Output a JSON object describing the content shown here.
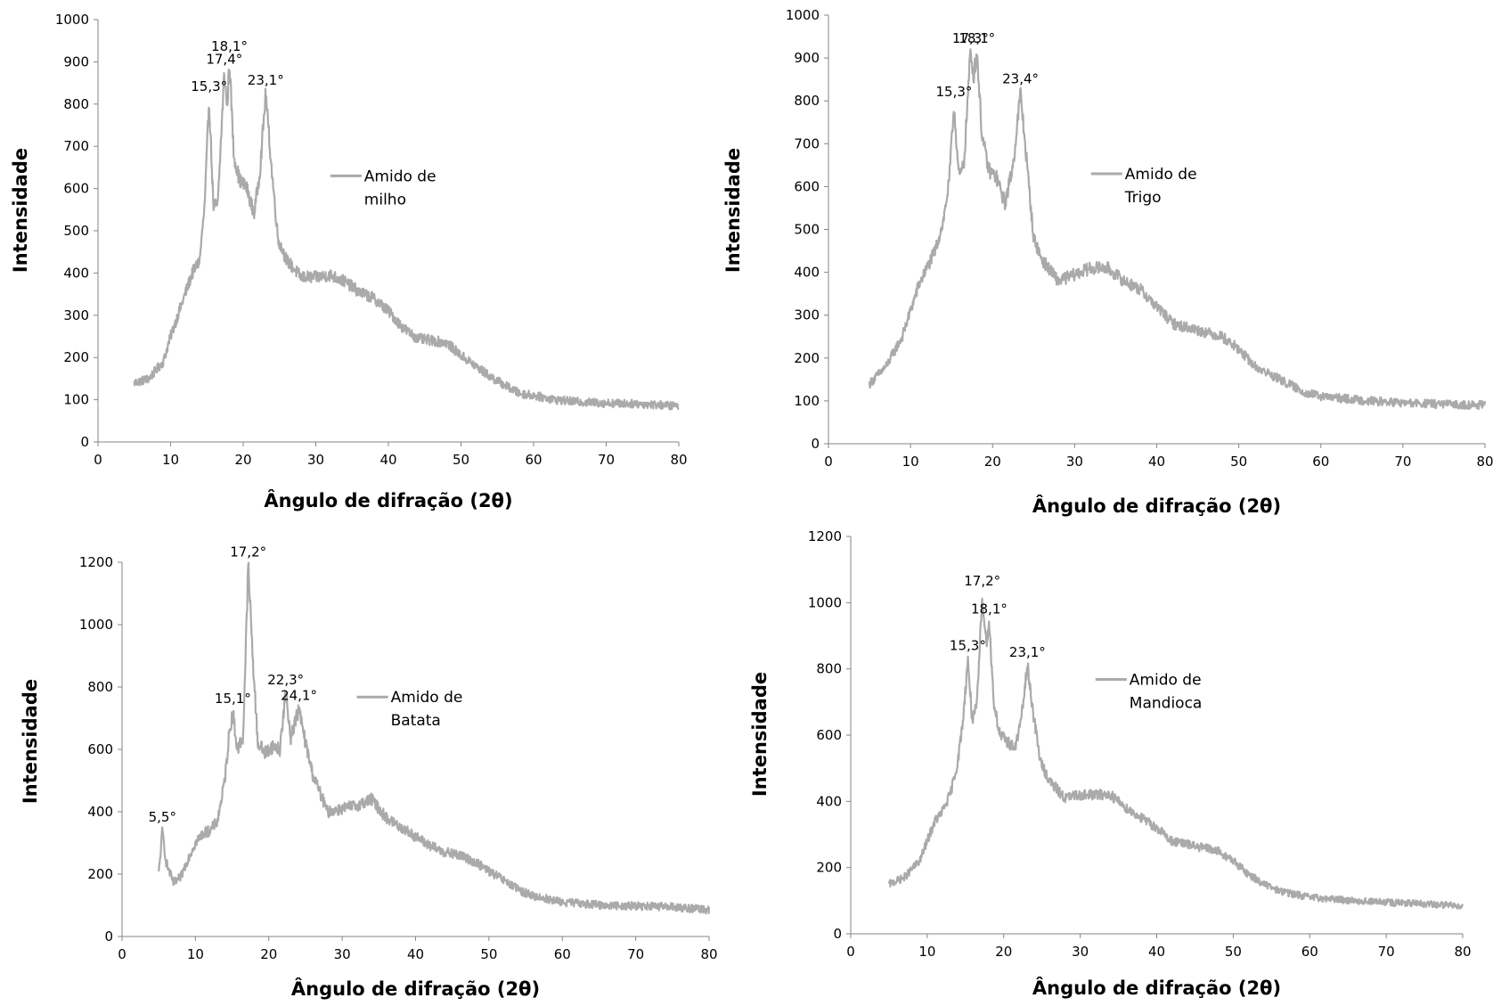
{
  "chart_data": [
    {
      "type": "line",
      "xlabel": "Ângulo de difração (2θ)",
      "ylabel": "Intensidade",
      "xlim": [
        0,
        80
      ],
      "ylim": [
        0,
        1000
      ],
      "xticks": [
        "0",
        "10",
        "20",
        "30",
        "40",
        "50",
        "60",
        "70",
        "80"
      ],
      "yticks": [
        "0",
        "100",
        "200",
        "300",
        "400",
        "500",
        "600",
        "700",
        "800",
        "900",
        "1000"
      ],
      "grid": false,
      "legend_position": "middle-right",
      "series": [
        {
          "name": "Amido de milho",
          "color": "#aaaaaa"
        }
      ],
      "peaks": [
        {
          "x": 15.3,
          "y": 810,
          "label": "15,3°"
        },
        {
          "x": 17.4,
          "y": 875,
          "label": "17,4°"
        },
        {
          "x": 18.1,
          "y": 905,
          "label": "18,1°"
        },
        {
          "x": 23.1,
          "y": 825,
          "label": "23,1°"
        }
      ],
      "profile": [
        [
          5,
          140
        ],
        [
          7,
          150
        ],
        [
          9,
          190
        ],
        [
          10,
          250
        ],
        [
          11,
          300
        ],
        [
          12,
          350
        ],
        [
          13,
          400
        ],
        [
          14,
          430
        ],
        [
          14.7,
          560
        ],
        [
          15.3,
          810
        ],
        [
          15.9,
          560
        ],
        [
          16.5,
          560
        ],
        [
          17.4,
          875
        ],
        [
          17.8,
          790
        ],
        [
          18.1,
          905
        ],
        [
          18.7,
          680
        ],
        [
          19.5,
          620
        ],
        [
          20.5,
          600
        ],
        [
          21.5,
          540
        ],
        [
          22.3,
          640
        ],
        [
          23.1,
          825
        ],
        [
          23.9,
          650
        ],
        [
          24.8,
          480
        ],
        [
          26,
          430
        ],
        [
          28,
          390
        ],
        [
          30,
          390
        ],
        [
          32,
          395
        ],
        [
          34,
          380
        ],
        [
          36,
          355
        ],
        [
          38,
          340
        ],
        [
          40,
          310
        ],
        [
          42,
          270
        ],
        [
          44,
          245
        ],
        [
          46,
          240
        ],
        [
          48,
          235
        ],
        [
          50,
          205
        ],
        [
          52,
          180
        ],
        [
          54,
          155
        ],
        [
          56,
          135
        ],
        [
          58,
          115
        ],
        [
          60,
          110
        ],
        [
          63,
          100
        ],
        [
          66,
          95
        ],
        [
          70,
          92
        ],
        [
          75,
          90
        ],
        [
          80,
          85
        ]
      ],
      "noise": 14
    },
    {
      "type": "line",
      "xlabel": "Ângulo de difração (2θ)",
      "ylabel": "Intensidade",
      "xlim": [
        0,
        80
      ],
      "ylim": [
        0,
        1000
      ],
      "xticks": [
        "0",
        "10",
        "20",
        "30",
        "40",
        "50",
        "60",
        "70",
        "80"
      ],
      "yticks": [
        "0",
        "100",
        "200",
        "300",
        "400",
        "500",
        "600",
        "700",
        "800",
        "900",
        "1000"
      ],
      "grid": false,
      "legend_position": "middle-right",
      "series": [
        {
          "name": "Amido de Trigo",
          "color": "#aaaaaa"
        }
      ],
      "peaks": [
        {
          "x": 15.3,
          "y": 790,
          "label": "15,3°"
        },
        {
          "x": 17.3,
          "y": 915,
          "label": "17,3°"
        },
        {
          "x": 18.1,
          "y": 915,
          "label": "18,1°"
        },
        {
          "x": 23.4,
          "y": 820,
          "label": "23,4°"
        }
      ],
      "profile": [
        [
          5,
          140
        ],
        [
          7,
          180
        ],
        [
          9,
          250
        ],
        [
          10,
          310
        ],
        [
          11,
          370
        ],
        [
          12,
          410
        ],
        [
          13,
          450
        ],
        [
          14,
          520
        ],
        [
          14.7,
          610
        ],
        [
          15.3,
          790
        ],
        [
          15.9,
          620
        ],
        [
          16.5,
          650
        ],
        [
          17.3,
          915
        ],
        [
          17.7,
          860
        ],
        [
          18.1,
          915
        ],
        [
          18.7,
          720
        ],
        [
          19.5,
          640
        ],
        [
          20.5,
          620
        ],
        [
          21.5,
          560
        ],
        [
          22.5,
          650
        ],
        [
          23.4,
          820
        ],
        [
          24.2,
          650
        ],
        [
          25,
          480
        ],
        [
          26,
          430
        ],
        [
          28,
          380
        ],
        [
          30,
          395
        ],
        [
          32,
          410
        ],
        [
          34,
          410
        ],
        [
          36,
          380
        ],
        [
          38,
          360
        ],
        [
          40,
          320
        ],
        [
          42,
          280
        ],
        [
          44,
          270
        ],
        [
          46,
          260
        ],
        [
          48,
          250
        ],
        [
          50,
          220
        ],
        [
          52,
          180
        ],
        [
          54,
          160
        ],
        [
          56,
          140
        ],
        [
          58,
          120
        ],
        [
          60,
          110
        ],
        [
          63,
          105
        ],
        [
          66,
          100
        ],
        [
          70,
          95
        ],
        [
          75,
          92
        ],
        [
          80,
          90
        ]
      ],
      "noise": 14
    },
    {
      "type": "line",
      "xlabel": "Ângulo de difração (2θ)",
      "ylabel": "Intensidade",
      "xlim": [
        0,
        80
      ],
      "ylim": [
        0,
        1200
      ],
      "xticks": [
        "0",
        "10",
        "20",
        "30",
        "40",
        "50",
        "60",
        "70",
        "80"
      ],
      "yticks": [
        "0",
        "200",
        "400",
        "600",
        "800",
        "1000",
        "1200"
      ],
      "grid": false,
      "legend_position": "middle-right",
      "series": [
        {
          "name": "Amido de Batata",
          "color": "#aaaaaa"
        }
      ],
      "peaks": [
        {
          "x": 5.5,
          "y": 340,
          "label": "5,5°"
        },
        {
          "x": 15.1,
          "y": 720,
          "label": "15,1°"
        },
        {
          "x": 17.2,
          "y": 1190,
          "label": "17,2°"
        },
        {
          "x": 22.3,
          "y": 780,
          "label": "22,3°"
        },
        {
          "x": 24.1,
          "y": 730,
          "label": "24,1°"
        }
      ],
      "profile": [
        [
          5,
          200
        ],
        [
          5.5,
          340
        ],
        [
          6,
          240
        ],
        [
          7,
          170
        ],
        [
          8,
          190
        ],
        [
          9,
          250
        ],
        [
          10,
          300
        ],
        [
          11,
          330
        ],
        [
          12,
          340
        ],
        [
          13,
          370
        ],
        [
          14,
          500
        ],
        [
          14.6,
          650
        ],
        [
          15.1,
          720
        ],
        [
          15.7,
          600
        ],
        [
          16.5,
          640
        ],
        [
          17.2,
          1190
        ],
        [
          17.8,
          900
        ],
        [
          18.5,
          620
        ],
        [
          19.5,
          590
        ],
        [
          20.5,
          610
        ],
        [
          21.5,
          600
        ],
        [
          22.3,
          780
        ],
        [
          23,
          640
        ],
        [
          24.1,
          730
        ],
        [
          25,
          620
        ],
        [
          26,
          520
        ],
        [
          27,
          460
        ],
        [
          28,
          400
        ],
        [
          30,
          410
        ],
        [
          32,
          420
        ],
        [
          34,
          440
        ],
        [
          36,
          380
        ],
        [
          38,
          350
        ],
        [
          40,
          320
        ],
        [
          42,
          290
        ],
        [
          44,
          270
        ],
        [
          46,
          260
        ],
        [
          48,
          240
        ],
        [
          50,
          210
        ],
        [
          52,
          180
        ],
        [
          54,
          150
        ],
        [
          56,
          130
        ],
        [
          58,
          120
        ],
        [
          60,
          110
        ],
        [
          63,
          105
        ],
        [
          66,
          100
        ],
        [
          70,
          98
        ],
        [
          75,
          95
        ],
        [
          80,
          85
        ]
      ],
      "noise": 18
    },
    {
      "type": "line",
      "xlabel": "Ângulo de difração (2θ)",
      "ylabel": "Intensidade",
      "xlim": [
        0,
        80
      ],
      "ylim": [
        0,
        1200
      ],
      "xticks": [
        "0",
        "10",
        "20",
        "30",
        "40",
        "50",
        "60",
        "70",
        "80"
      ],
      "yticks": [
        "0",
        "200",
        "400",
        "600",
        "800",
        "1000",
        "1200"
      ],
      "grid": false,
      "legend_position": "middle-right",
      "series": [
        {
          "name": "Amido de Mandioca",
          "color": "#aaaaaa"
        }
      ],
      "peaks": [
        {
          "x": 15.3,
          "y": 830,
          "label": "15,3°"
        },
        {
          "x": 17.2,
          "y": 1025,
          "label": "17,2°"
        },
        {
          "x": 18.1,
          "y": 940,
          "label": "18,1°"
        },
        {
          "x": 23.1,
          "y": 810,
          "label": "23,1°"
        }
      ],
      "profile": [
        [
          5,
          150
        ],
        [
          7,
          170
        ],
        [
          9,
          220
        ],
        [
          10,
          280
        ],
        [
          11,
          340
        ],
        [
          12,
          370
        ],
        [
          13,
          420
        ],
        [
          14,
          520
        ],
        [
          14.7,
          650
        ],
        [
          15.3,
          830
        ],
        [
          15.9,
          640
        ],
        [
          16.5,
          690
        ],
        [
          17.2,
          1025
        ],
        [
          17.7,
          880
        ],
        [
          18.1,
          940
        ],
        [
          18.7,
          700
        ],
        [
          19.5,
          600
        ],
        [
          20.5,
          580
        ],
        [
          21.5,
          560
        ],
        [
          22.3,
          650
        ],
        [
          23.1,
          810
        ],
        [
          23.9,
          660
        ],
        [
          24.8,
          520
        ],
        [
          26,
          460
        ],
        [
          28,
          410
        ],
        [
          30,
          420
        ],
        [
          32,
          420
        ],
        [
          34,
          420
        ],
        [
          36,
          380
        ],
        [
          38,
          350
        ],
        [
          40,
          320
        ],
        [
          42,
          280
        ],
        [
          44,
          270
        ],
        [
          46,
          260
        ],
        [
          48,
          250
        ],
        [
          50,
          220
        ],
        [
          52,
          180
        ],
        [
          54,
          150
        ],
        [
          56,
          130
        ],
        [
          58,
          120
        ],
        [
          60,
          110
        ],
        [
          63,
          105
        ],
        [
          66,
          100
        ],
        [
          70,
          95
        ],
        [
          75,
          90
        ],
        [
          80,
          85
        ]
      ],
      "noise": 15
    }
  ]
}
